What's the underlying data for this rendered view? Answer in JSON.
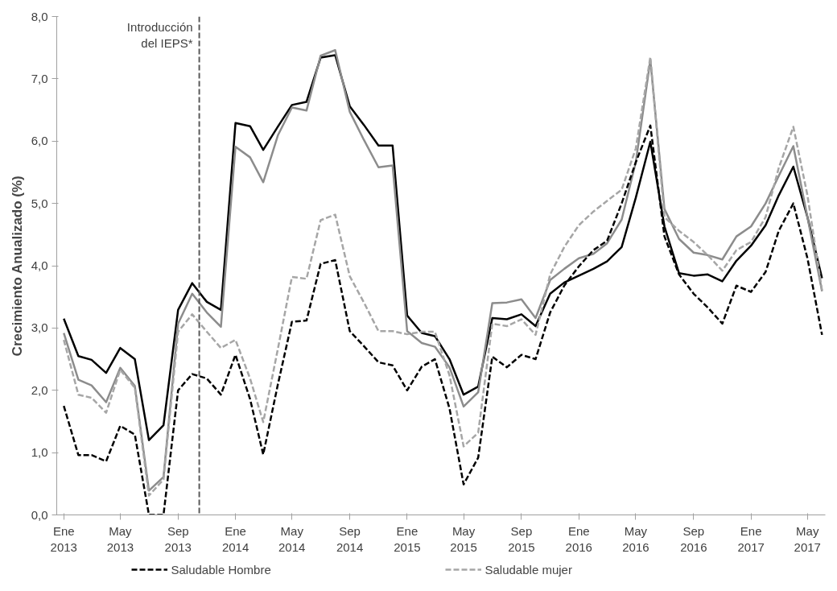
{
  "chart_data": {
    "type": "line",
    "ylabel": "Crecimiento Anualizado (%)",
    "x": [
      "2013-01",
      "2013-02",
      "2013-03",
      "2013-04",
      "2013-05",
      "2013-06",
      "2013-07",
      "2013-08",
      "2013-09",
      "2013-10",
      "2013-11",
      "2013-12",
      "2014-01",
      "2014-02",
      "2014-03",
      "2014-04",
      "2014-05",
      "2014-06",
      "2014-07",
      "2014-08",
      "2014-09",
      "2014-10",
      "2014-11",
      "2014-12",
      "2015-01",
      "2015-02",
      "2015-03",
      "2015-04",
      "2015-05",
      "2015-06",
      "2015-07",
      "2015-08",
      "2015-09",
      "2015-10",
      "2015-11",
      "2015-12",
      "2016-01",
      "2016-02",
      "2016-03",
      "2016-04",
      "2016-05",
      "2016-06",
      "2016-07",
      "2016-08",
      "2016-09",
      "2016-10",
      "2016-11",
      "2016-12",
      "2017-01",
      "2017-02",
      "2017-03",
      "2017-04",
      "2017-05",
      "2017-06"
    ],
    "series": [
      {
        "color": "#000000",
        "line_style": "solid",
        "values": [
          3.15,
          2.55,
          2.49,
          2.28,
          2.68,
          2.5,
          1.2,
          1.44,
          3.29,
          3.72,
          3.42,
          3.29,
          6.29,
          6.24,
          5.86,
          6.23,
          6.58,
          6.63,
          7.34,
          7.38,
          6.56,
          6.26,
          5.93,
          5.93,
          3.2,
          2.92,
          2.87,
          2.5,
          1.93,
          2.06,
          3.16,
          3.14,
          3.22,
          3.03,
          3.55,
          3.73,
          3.84,
          3.95,
          4.07,
          4.3,
          5.09,
          5.99,
          4.63,
          3.88,
          3.84,
          3.86,
          3.75,
          4.08,
          4.32,
          4.65,
          5.13,
          5.59,
          4.78,
          3.8
        ]
      },
      {
        "color": "#8c8c8c",
        "line_style": "solid",
        "values": [
          2.92,
          2.17,
          2.08,
          1.81,
          2.36,
          2.07,
          0.39,
          0.61,
          3.07,
          3.55,
          3.25,
          3.02,
          5.91,
          5.74,
          5.34,
          6.09,
          6.54,
          6.49,
          7.37,
          7.46,
          6.47,
          6.02,
          5.58,
          5.61,
          2.95,
          2.76,
          2.7,
          2.37,
          1.74,
          1.97,
          3.4,
          3.41,
          3.46,
          3.16,
          3.77,
          3.95,
          4.12,
          4.19,
          4.36,
          4.74,
          5.66,
          7.3,
          4.91,
          4.43,
          4.21,
          4.17,
          4.1,
          4.47,
          4.63,
          5.0,
          5.44,
          5.92,
          4.78,
          3.59
        ]
      },
      {
        "name": "Saludable Hombre",
        "color": "#000000",
        "line_style": "dashed",
        "values": [
          1.75,
          0.96,
          0.96,
          0.86,
          1.43,
          1.29,
          0.0,
          0.0,
          2.0,
          2.26,
          2.19,
          1.93,
          2.57,
          1.86,
          0.97,
          2.09,
          3.1,
          3.12,
          4.03,
          4.09,
          2.95,
          2.71,
          2.45,
          2.4,
          2.0,
          2.38,
          2.5,
          1.71,
          0.49,
          0.92,
          2.54,
          2.37,
          2.57,
          2.5,
          3.25,
          3.68,
          3.99,
          4.25,
          4.4,
          5.0,
          5.66,
          6.25,
          4.47,
          3.86,
          3.55,
          3.33,
          3.07,
          3.68,
          3.58,
          3.9,
          4.56,
          5.0,
          4.12,
          2.89
        ]
      },
      {
        "name": "Saludable mujer",
        "color": "#a6a6a6",
        "line_style": "dashed",
        "values": [
          2.81,
          1.93,
          1.88,
          1.64,
          2.33,
          2.04,
          0.31,
          0.57,
          2.94,
          3.22,
          2.94,
          2.68,
          2.81,
          2.19,
          1.49,
          2.66,
          3.82,
          3.79,
          4.73,
          4.82,
          3.83,
          3.41,
          2.95,
          2.95,
          2.9,
          2.94,
          2.94,
          2.24,
          1.1,
          1.32,
          3.07,
          3.03,
          3.14,
          2.89,
          3.86,
          4.3,
          4.65,
          4.87,
          5.04,
          5.22,
          5.88,
          7.35,
          4.78,
          4.56,
          4.38,
          4.17,
          3.92,
          4.25,
          4.38,
          4.78,
          5.57,
          6.23,
          5.13,
          3.6
        ]
      }
    ],
    "xlim": [
      "2012-12-17",
      "2017-06-08"
    ],
    "xticks": [
      {
        "value": "2013-01",
        "label": "Ene\n2013"
      },
      {
        "value": "2013-05",
        "label": "May\n2013"
      },
      {
        "value": "2013-09",
        "label": "Sep\n2013"
      },
      {
        "value": "2014-01",
        "label": "Ene\n2014"
      },
      {
        "value": "2014-05",
        "label": "May\n2014"
      },
      {
        "value": "2014-09",
        "label": "Sep\n2014"
      },
      {
        "value": "2015-01",
        "label": "Ene\n2015"
      },
      {
        "value": "2015-05",
        "label": "May\n2015"
      },
      {
        "value": "2015-09",
        "label": "Sep\n2015"
      },
      {
        "value": "2016-01",
        "label": "Ene\n2016"
      },
      {
        "value": "2016-05",
        "label": "May\n2016"
      },
      {
        "value": "2016-09",
        "label": "Sep\n2016"
      },
      {
        "value": "2017-01",
        "label": "Ene\n2017"
      },
      {
        "value": "2017-05",
        "label": "May\n2017"
      }
    ],
    "ylim": [
      0,
      8
    ],
    "yticks": [
      {
        "value": 0,
        "label": "0,0"
      },
      {
        "value": 1,
        "label": "1,0"
      },
      {
        "value": 2,
        "label": "2,0"
      },
      {
        "value": 3,
        "label": "3,0"
      },
      {
        "value": 4,
        "label": "4,0"
      },
      {
        "value": 5,
        "label": "5,0"
      },
      {
        "value": 6,
        "label": "6,0"
      },
      {
        "value": 7,
        "label": "7,0"
      },
      {
        "value": 8,
        "label": "8,0"
      }
    ],
    "ref_lines": [
      {
        "axis": "x",
        "value": "2013-10-16",
        "label": "Introducción\ndel IEPS*",
        "color": "#595959",
        "line_style": "dashed"
      }
    ],
    "grid": false,
    "legend": "bottom"
  }
}
